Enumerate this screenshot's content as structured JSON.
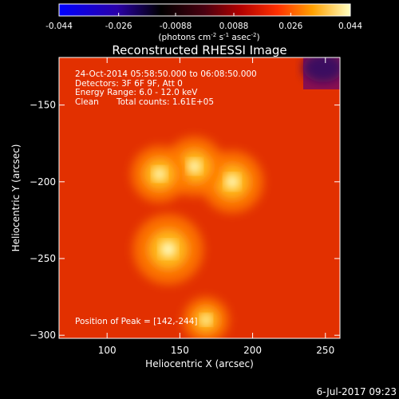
{
  "colorbar": {
    "ticks": [
      "-0.044",
      "-0.026",
      "-0.0088",
      "0.0088",
      "0.026",
      "0.044"
    ],
    "units_prefix": "(photons cm",
    "units_exp1": "-2",
    "units_mid1": " s",
    "units_exp2": "-1",
    "units_mid2": " asec",
    "units_exp3": "-2",
    "units_suffix": ")",
    "range": [
      -0.044,
      0.044
    ]
  },
  "chart_data": {
    "type": "heatmap",
    "title": "Reconstructed RHESSI Image",
    "xlabel": "Heliocentric X (arcsec)",
    "ylabel": "Heliocentric Y (arcsec)",
    "xlim": [
      67,
      260
    ],
    "ylim": [
      -302,
      -119
    ],
    "x_ticks": [
      100,
      150,
      200,
      250
    ],
    "y_ticks": [
      -150,
      -200,
      -250,
      -300
    ],
    "colormap": "RHESSI red-temperature",
    "sources": [
      {
        "x": 142,
        "y": -244,
        "relative_intensity": 1.0
      },
      {
        "x": 186,
        "y": -200,
        "relative_intensity": 0.85
      },
      {
        "x": 160,
        "y": -190,
        "relative_intensity": 0.8
      },
      {
        "x": 136,
        "y": -195,
        "relative_intensity": 0.75
      },
      {
        "x": 168,
        "y": -290,
        "relative_intensity": 0.55
      }
    ]
  },
  "annotations": {
    "time_range": "24-Oct-2014 05:58:50.000 to 06:08:50.000",
    "detectors": "Detectors: 3F 6F 9F, Att 0",
    "energy": "Energy Range: 6.0 - 12.0 keV",
    "method": "Clean",
    "counts": "Total counts: 1.61E+05",
    "peak": "Position of Peak = [142,-244]"
  },
  "footer": {
    "date": "6-Jul-2017 09:23"
  }
}
